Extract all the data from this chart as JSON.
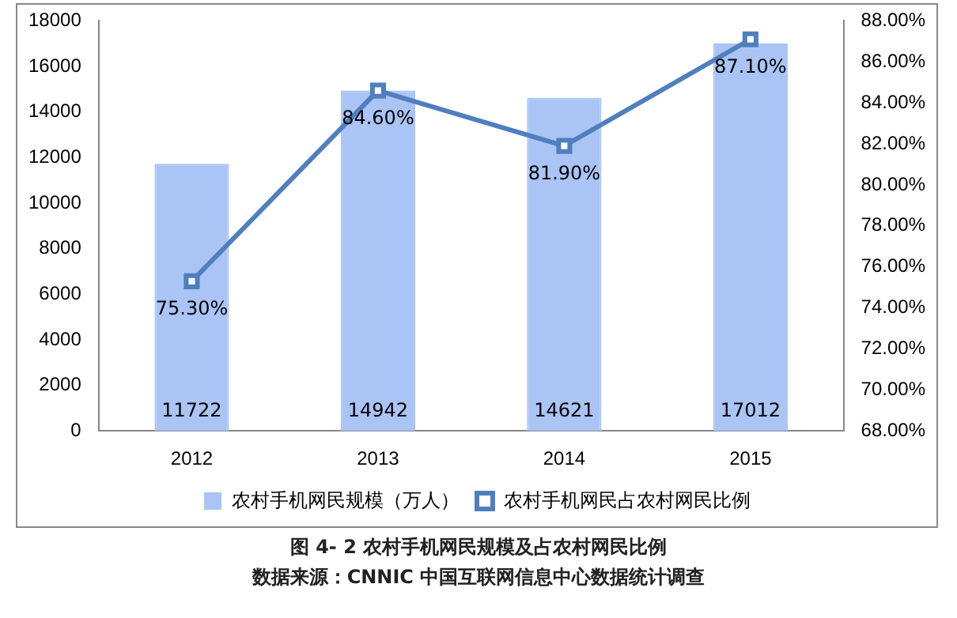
{
  "chart_data": {
    "type": "bar",
    "title": "图 4- 2 农村手机网民规模及占农村网民比例",
    "annotations": [
      "数据来源：CNNIC 中国互联网信息中心数据统计调查"
    ],
    "categories": [
      "2012",
      "2013",
      "2014",
      "2015"
    ],
    "series": [
      {
        "name": "农村手机网民规模（万人）",
        "color": "#a9c4f5",
        "values": [
          11722,
          14942,
          14621,
          17012
        ],
        "value_labels": [
          "11722",
          "14942",
          "14621",
          "17012"
        ]
      },
      {
        "name": "农村手机网民占农村网民比例",
        "type": "line",
        "axis": "y2",
        "color": "#4f7fbf",
        "marker": "square",
        "values": [
          75.3,
          84.6,
          81.9,
          87.1
        ],
        "value_labels": [
          "75.30%",
          "84.60%",
          "81.90%",
          "87.10%"
        ]
      }
    ],
    "ylim": [
      0,
      18000
    ],
    "yticks": [
      0,
      2000,
      4000,
      6000,
      8000,
      10000,
      12000,
      14000,
      16000,
      18000
    ],
    "y2lim": [
      68,
      88
    ],
    "y2ticks": [
      {
        "value": 68,
        "label": "68.00%"
      },
      {
        "value": 70,
        "label": "70.00%"
      },
      {
        "value": 72,
        "label": "72.00%"
      },
      {
        "value": 74,
        "label": "74.00%"
      },
      {
        "value": 76,
        "label": "76.00%"
      },
      {
        "value": 78,
        "label": "78.00%"
      },
      {
        "value": 80,
        "label": "80.00%"
      },
      {
        "value": 82,
        "label": "82.00%"
      },
      {
        "value": 84,
        "label": "84.00%"
      },
      {
        "value": 86,
        "label": "86.00%"
      },
      {
        "value": 88,
        "label": "88.00%"
      }
    ],
    "grid": false,
    "legend": "bottom"
  }
}
